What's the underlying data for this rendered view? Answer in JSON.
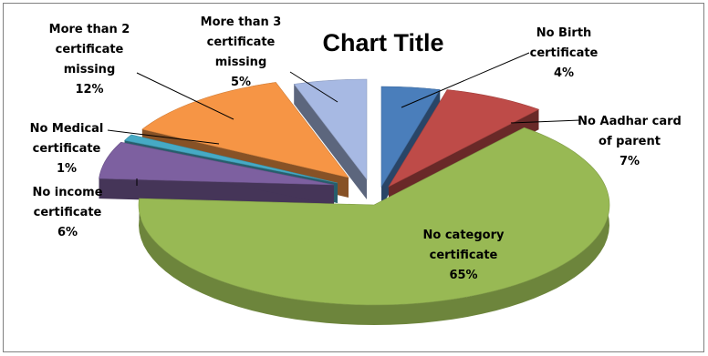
{
  "chart_data": {
    "type": "pie",
    "title": "Chart Title",
    "slices": [
      {
        "label_lines": [
          "No Birth",
          "certificate"
        ],
        "value": 4,
        "value_text": "4%",
        "color": "#4a7ebb"
      },
      {
        "label_lines": [
          "No Aadhar card",
          "of parent"
        ],
        "value": 7,
        "value_text": "7%",
        "color": "#be4b48"
      },
      {
        "label_lines": [
          "No category",
          "certificate"
        ],
        "value": 65,
        "value_text": "65%",
        "color": "#98b954"
      },
      {
        "label_lines": [
          "No income",
          "certificate"
        ],
        "value": 6,
        "value_text": "6%",
        "color": "#7d60a0"
      },
      {
        "label_lines": [
          "No Medical",
          "certificate"
        ],
        "value": 1,
        "value_text": "1%",
        "color": "#46aac5"
      },
      {
        "label_lines": [
          "More than 2",
          "certificate",
          "missing"
        ],
        "value": 12,
        "value_text": "12%",
        "color": "#f69545"
      },
      {
        "label_lines": [
          "More than 3",
          "certificate",
          "missing"
        ],
        "value": 5,
        "value_text": "5%",
        "color": "#a7b9e3"
      }
    ],
    "legend": false
  }
}
